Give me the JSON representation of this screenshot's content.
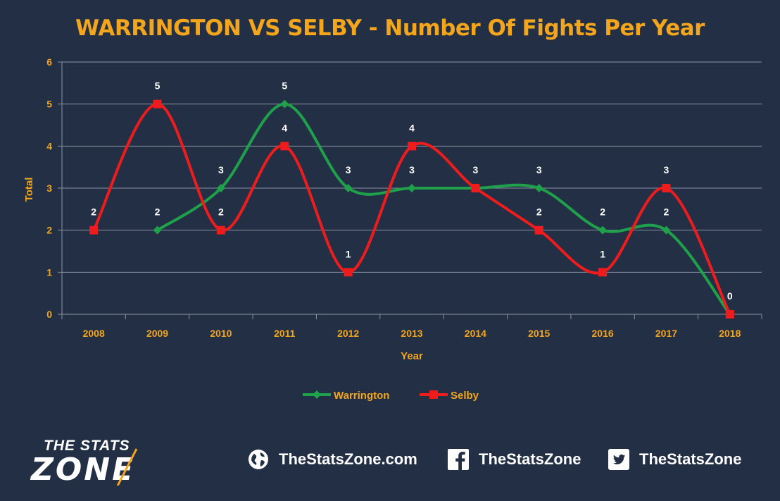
{
  "chart_data": {
    "type": "line",
    "title": "WARRINGTON VS SELBY - Number Of Fights Per Year",
    "xlabel": "Year",
    "ylabel": "Total",
    "categories": [
      "2008",
      "2009",
      "2010",
      "2011",
      "2012",
      "2013",
      "2014",
      "2015",
      "2016",
      "2017",
      "2018"
    ],
    "ylim": [
      0,
      6
    ],
    "yticks": [
      0,
      1,
      2,
      3,
      4,
      5,
      6
    ],
    "grid": true,
    "legend_position": "bottom",
    "series": [
      {
        "name": "Warrington",
        "color": "#1fa04a",
        "marker": "diamond",
        "values": [
          null,
          2,
          3,
          5,
          3,
          3,
          3,
          3,
          2,
          2,
          0
        ]
      },
      {
        "name": "Selby",
        "color": "#ee1c1c",
        "marker": "square",
        "values": [
          2,
          5,
          2,
          4,
          1,
          4,
          3,
          2,
          1,
          3,
          0
        ]
      }
    ],
    "data_labels": [
      {
        "category": "2008",
        "text": "2"
      },
      {
        "category": "2009",
        "text": "5"
      },
      {
        "category": "2009",
        "text": "2"
      },
      {
        "category": "2010",
        "text": "3"
      },
      {
        "category": "2010",
        "text": "2"
      },
      {
        "category": "2011",
        "text": "5"
      },
      {
        "category": "2011",
        "text": "4"
      },
      {
        "category": "2012",
        "text": "3"
      },
      {
        "category": "2012",
        "text": "1"
      },
      {
        "category": "2013",
        "text": "4"
      },
      {
        "category": "2013",
        "text": "3"
      },
      {
        "category": "2014",
        "text": "3"
      },
      {
        "category": "2015",
        "text": "3"
      },
      {
        "category": "2015",
        "text": "2"
      },
      {
        "category": "2016",
        "text": "2"
      },
      {
        "category": "2016",
        "text": "1"
      },
      {
        "category": "2017",
        "text": "3"
      },
      {
        "category": "2017",
        "text": "2"
      },
      {
        "category": "2018",
        "text": "0"
      }
    ]
  },
  "footer": {
    "logo_line1": "THE STATS",
    "logo_line2": "ZONE",
    "website": "TheStatsZone.com",
    "facebook": "TheStatsZone",
    "twitter": "TheStatsZone",
    "website_icon": "globe-icon",
    "facebook_icon": "facebook-icon",
    "twitter_icon": "twitter-icon"
  }
}
